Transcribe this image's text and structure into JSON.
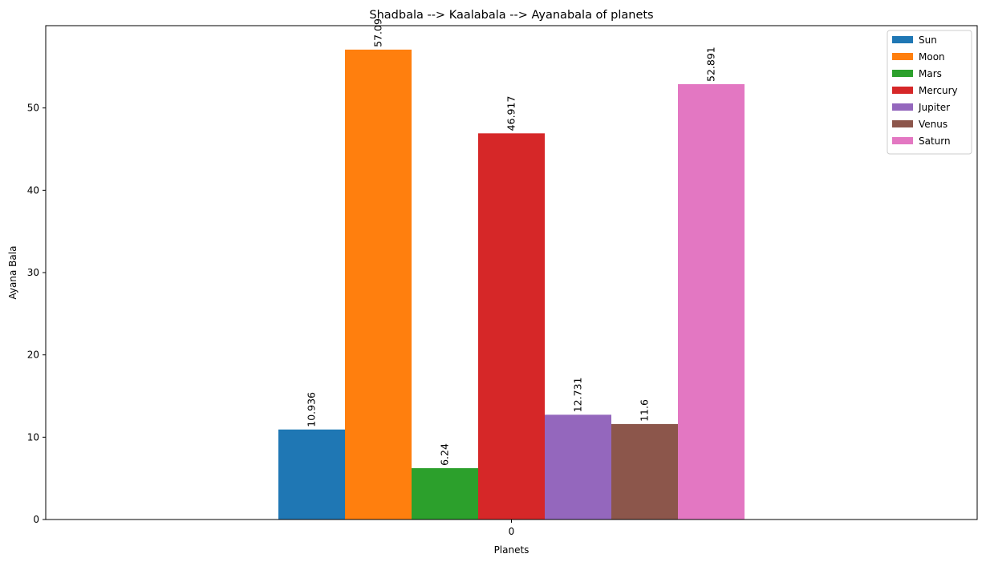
{
  "chart_data": {
    "type": "bar",
    "title": "Shadbala --> Kaalabala --> Ayanabala of planets",
    "xlabel": "Planets",
    "ylabel": "Ayana Bala",
    "categories": [
      "0"
    ],
    "series": [
      {
        "name": "Sun",
        "values": [
          10.936
        ],
        "color": "#1f77b4"
      },
      {
        "name": "Moon",
        "values": [
          57.09
        ],
        "color": "#ff7f0e"
      },
      {
        "name": "Mars",
        "values": [
          6.24
        ],
        "color": "#2ca02c"
      },
      {
        "name": "Mercury",
        "values": [
          46.917
        ],
        "color": "#d62728"
      },
      {
        "name": "Jupiter",
        "values": [
          12.731
        ],
        "color": "#9467bd"
      },
      {
        "name": "Venus",
        "values": [
          11.6
        ],
        "color": "#8c564b"
      },
      {
        "name": "Saturn",
        "values": [
          52.891
        ],
        "color": "#e377c2"
      }
    ],
    "data_labels": [
      "10.936",
      "57.09",
      "6.24",
      "46.917",
      "12.731",
      "11.6",
      "52.891"
    ],
    "ylim": [
      0,
      60
    ],
    "yticks": [
      0,
      10,
      20,
      30,
      40,
      50
    ],
    "grid": false,
    "legend_position": "top-right"
  }
}
